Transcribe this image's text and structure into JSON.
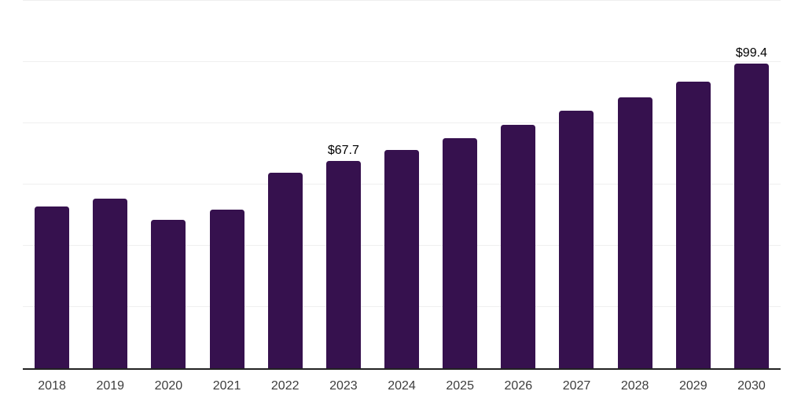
{
  "chart_data": {
    "type": "bar",
    "title": "",
    "xlabel": "",
    "ylabel": "",
    "categories": [
      "2018",
      "2019",
      "2020",
      "2021",
      "2022",
      "2023",
      "2024",
      "2025",
      "2026",
      "2027",
      "2028",
      "2029",
      "2030"
    ],
    "values": [
      52.8,
      55.4,
      48.5,
      51.9,
      63.8,
      67.7,
      71.3,
      75.1,
      79.4,
      84.1,
      88.5,
      93.7,
      99.4
    ],
    "annotations": [
      {
        "category": "2023",
        "text": "$67.7"
      },
      {
        "category": "2030",
        "text": "$99.4"
      }
    ],
    "ylim": [
      0,
      120
    ],
    "gridline_step": 20,
    "grid": "horizontal-only",
    "y_tick_labels_visible": false,
    "legend": "none",
    "colors": {
      "bar": "#36114E",
      "gridline": "#EFEFEF",
      "axis_line": "#222222",
      "tick_label": "#3D3D3D",
      "annotation": "#000000",
      "background": "#FFFFFF"
    }
  }
}
